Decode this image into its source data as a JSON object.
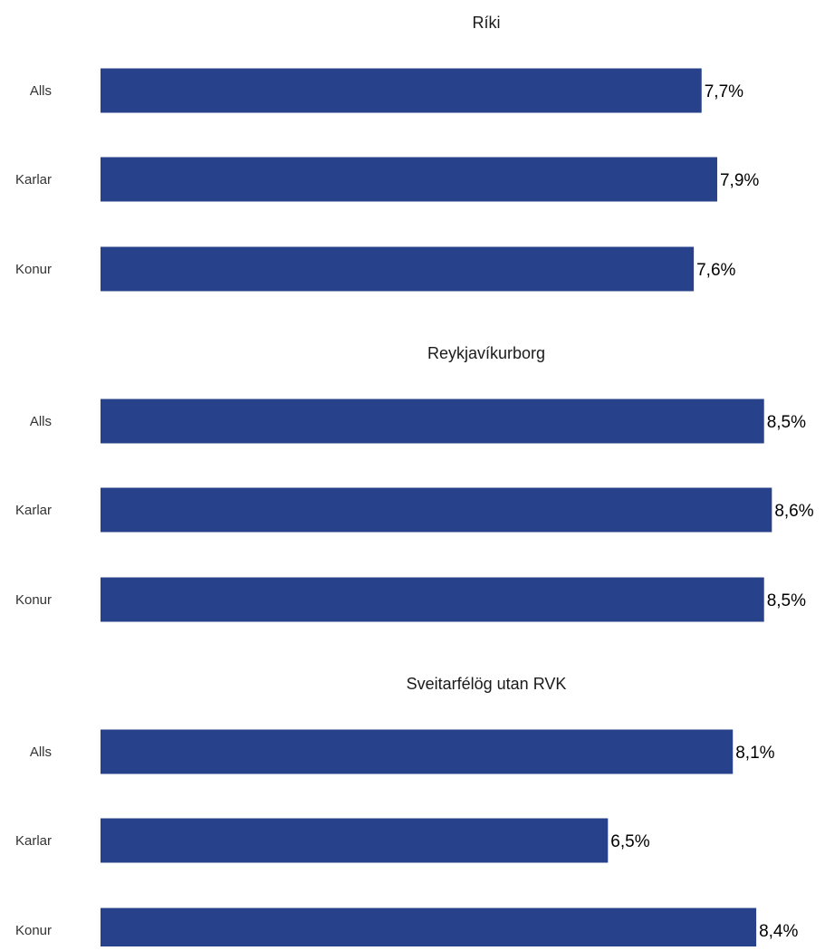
{
  "chart_data": [
    {
      "type": "bar",
      "orientation": "horizontal",
      "title": "Ríki",
      "categories": [
        "Alls",
        "Karlar",
        "Konur"
      ],
      "values": [
        7.7,
        7.9,
        7.6
      ],
      "value_labels": [
        "7,7%",
        "7,9%",
        "7,6%"
      ],
      "unit": "%",
      "grid": false,
      "legend": "none"
    },
    {
      "type": "bar",
      "orientation": "horizontal",
      "title": "Reykjavíkurborg",
      "categories": [
        "Alls",
        "Karlar",
        "Konur"
      ],
      "values": [
        8.5,
        8.6,
        8.5
      ],
      "value_labels": [
        "8,5%",
        "8,6%",
        "8,5%"
      ],
      "unit": "%",
      "grid": false,
      "legend": "none"
    },
    {
      "type": "bar",
      "orientation": "horizontal",
      "title": "Sveitarfélög utan RVK",
      "categories": [
        "Alls",
        "Karlar",
        "Konur"
      ],
      "values": [
        8.1,
        6.5,
        8.4
      ],
      "value_labels": [
        "8,1%",
        "6,5%",
        "8,4%"
      ],
      "unit": "%",
      "grid": false,
      "legend": "none"
    }
  ],
  "colors": {
    "bar": "#27428a",
    "title": "#1a1a1a",
    "category_label": "#333333",
    "value_label": "#000000"
  }
}
